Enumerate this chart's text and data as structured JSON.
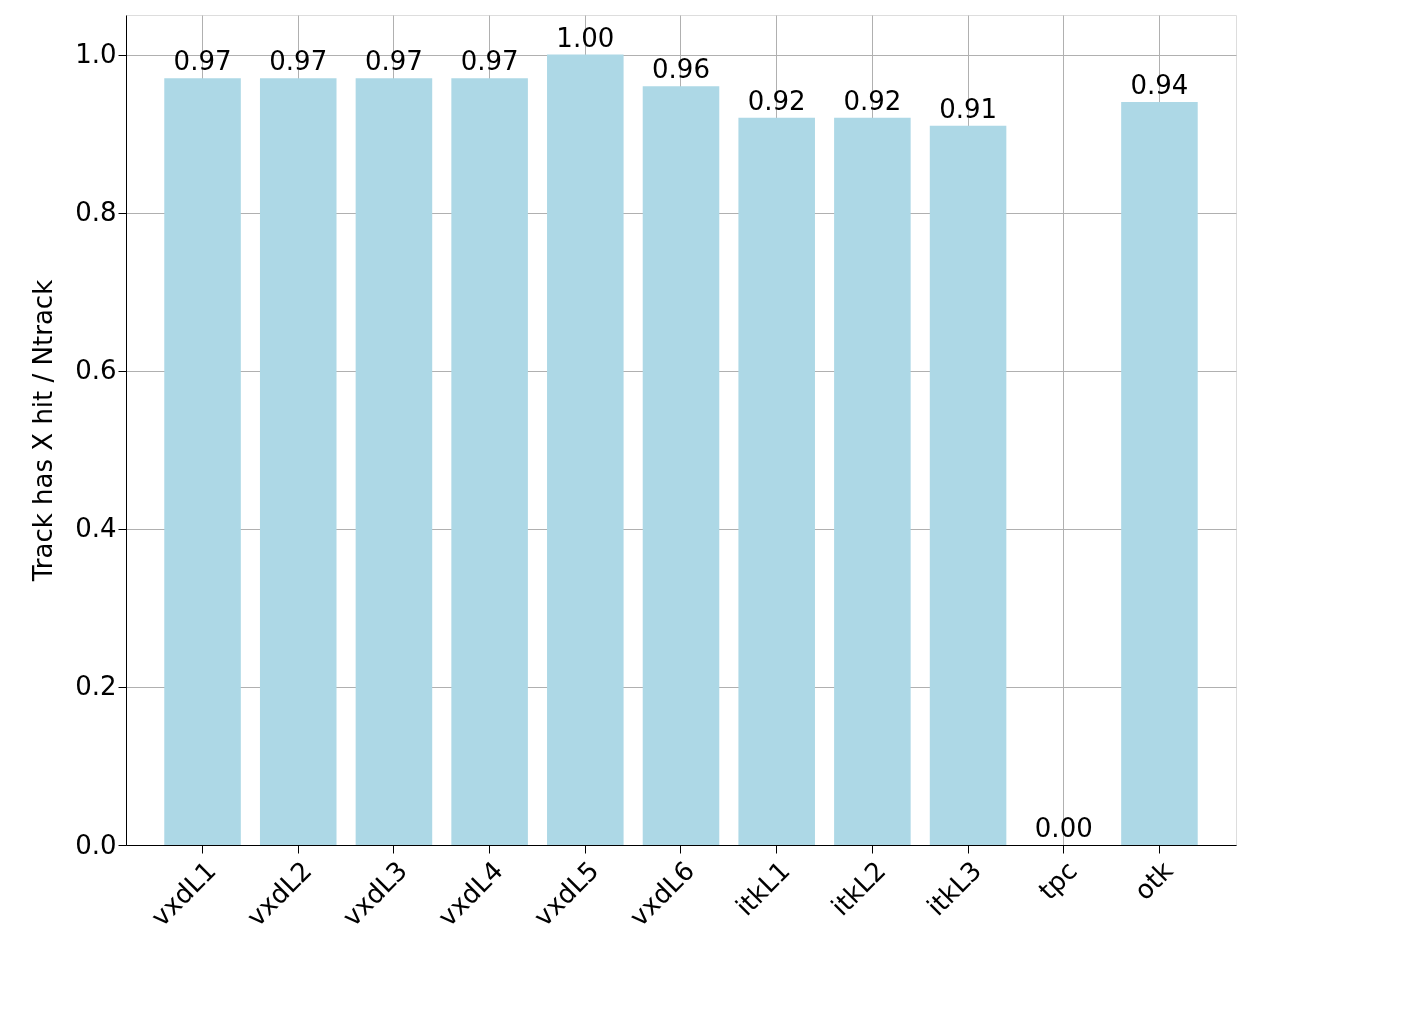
{
  "chart_data": {
    "type": "bar",
    "ylabel": "Track has X hit / Ntrack",
    "categories": [
      "vxdL1",
      "vxdL2",
      "vxdL3",
      "vxdL4",
      "vxdL5",
      "vxdL6",
      "itkL1",
      "itkL2",
      "itkL3",
      "tpc",
      "otk"
    ],
    "values": [
      0.97,
      0.97,
      0.97,
      0.97,
      1.0,
      0.96,
      0.92,
      0.92,
      0.91,
      0.0,
      0.94
    ],
    "value_labels": [
      "0.97",
      "0.97",
      "0.97",
      "0.97",
      "1.00",
      "0.96",
      "0.92",
      "0.92",
      "0.91",
      "0.00",
      "0.94"
    ],
    "color": "#add8e6",
    "ylim": [
      0,
      1.05
    ],
    "yticks": [
      {
        "value": 0,
        "label": "0.0"
      },
      {
        "value": 0.2,
        "label": "0.2"
      },
      {
        "value": 0.4,
        "label": "0.4"
      },
      {
        "value": 0.6,
        "label": "0.6"
      },
      {
        "value": 0.8,
        "label": "0.8"
      },
      {
        "value": 1.0,
        "label": "1.0"
      }
    ],
    "grid": true
  }
}
